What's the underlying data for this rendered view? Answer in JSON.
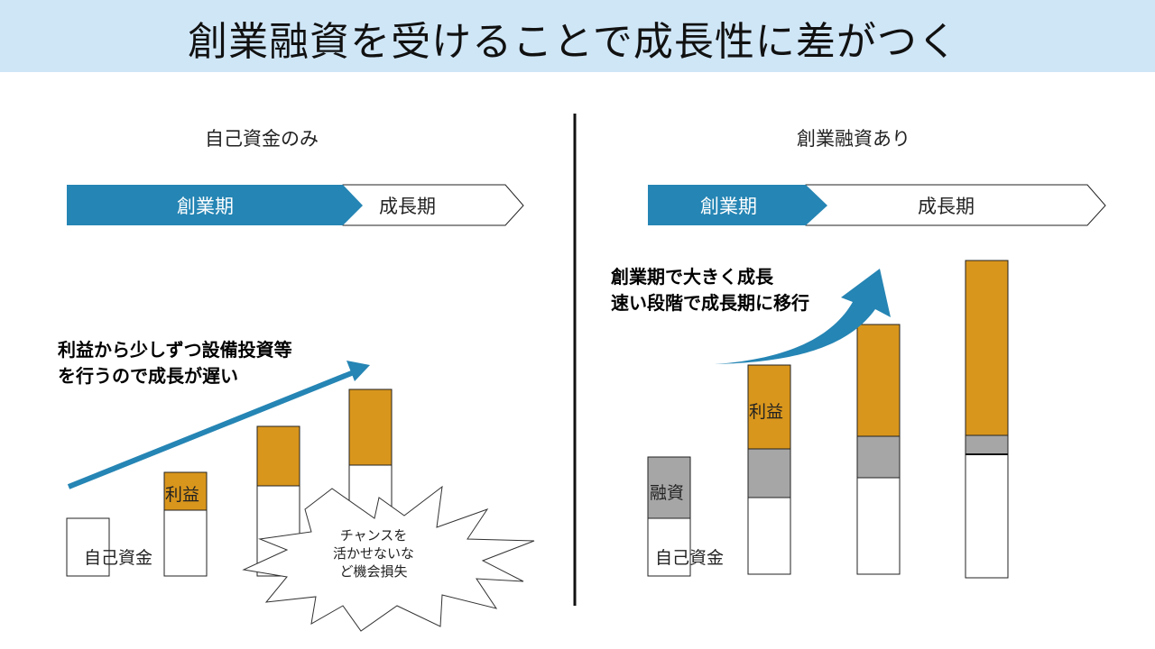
{
  "title": "創業融資を受けることで成長性に差がつく",
  "left": {
    "heading": "自己資金のみ",
    "phase_startup": "創業期",
    "phase_growth": "成長期",
    "note": "利益から少しずつ設備投資等\nを行うので成長が遅い",
    "label_own_funds": "自己資金",
    "label_profit": "利益",
    "burst": "チャンスを\n活かせないな\nど機会損失"
  },
  "right": {
    "heading": "創業融資あり",
    "phase_startup": "創業期",
    "phase_growth": "成長期",
    "note": "創業期で大きく成長\n速い段階で成長期に移行",
    "label_loan": "融資",
    "label_own_funds": "自己資金",
    "label_profit": "利益"
  },
  "colors": {
    "title_bg": "#cfe6f7",
    "phase_blue": "#2585b4",
    "profit": "#d9961c",
    "loan": "#a6a6a6",
    "arrow": "#2585b4"
  }
}
